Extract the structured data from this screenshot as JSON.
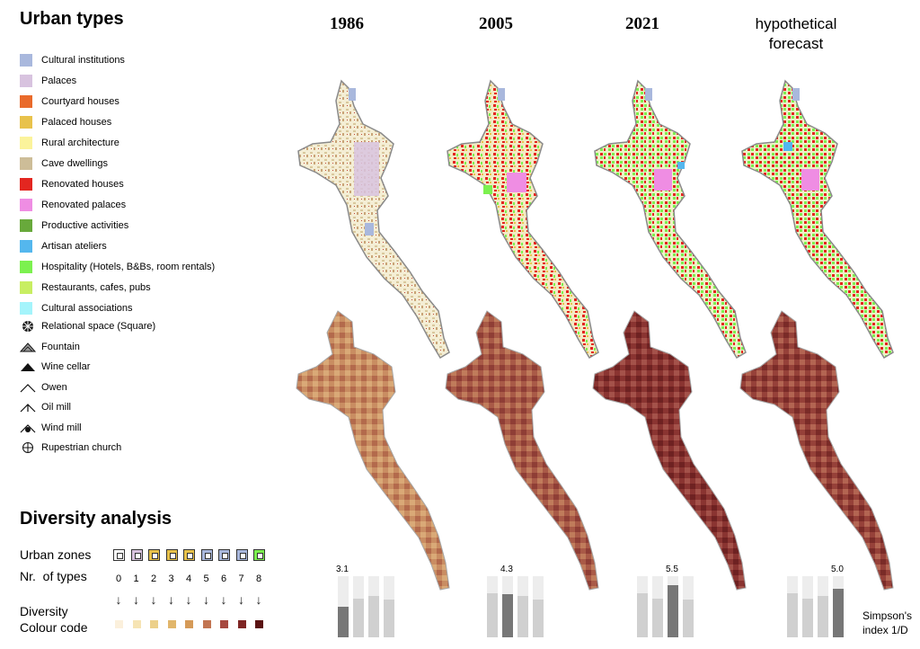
{
  "legend": {
    "title": "Urban types",
    "types": [
      {
        "label": "Cultural institutions",
        "color": "#a9b8dd"
      },
      {
        "label": "Palaces",
        "color": "#d8c3df"
      },
      {
        "label": "Courtyard houses",
        "color": "#e96a2b"
      },
      {
        "label": "Palaced houses",
        "color": "#e8c24b"
      },
      {
        "label": "Rural architecture",
        "color": "#fbf39b"
      },
      {
        "label": "Cave dwellings",
        "color": "#cdbd98"
      },
      {
        "label": "Renovated houses",
        "color": "#e32620"
      },
      {
        "label": "Renovated palaces",
        "color": "#ef8de3"
      },
      {
        "label": "Productive activities",
        "color": "#68a93b"
      },
      {
        "label": "Artisan ateliers",
        "color": "#54b7ee"
      },
      {
        "label": "Hospitality (Hotels, B&Bs, room rentals)",
        "color": "#7cf14f"
      },
      {
        "label": "Restaurants, cafes, pubs",
        "color": "#c8ee62"
      },
      {
        "label": "Cultural associations",
        "color": "#a4f4fb"
      }
    ],
    "symbols": [
      {
        "label": "Relational space (Square)",
        "icon": "relational-space-icon"
      },
      {
        "label": "Fountain",
        "icon": "fountain-icon"
      },
      {
        "label": "Wine cellar",
        "icon": "wine-cellar-icon"
      },
      {
        "label": "Owen",
        "icon": "oven-icon"
      },
      {
        "label": "Oil mill",
        "icon": "oil-mill-icon"
      },
      {
        "label": "Wind mill",
        "icon": "wind-mill-icon"
      },
      {
        "label": "Rupestrian church",
        "icon": "rupestrian-church-icon"
      }
    ]
  },
  "diversity": {
    "title": "Diversity analysis",
    "zones_label": "Urban zones",
    "types_label": "Nr.  of types",
    "numbers": [
      "0",
      "1",
      "2",
      "3",
      "4",
      "5",
      "6",
      "7",
      "8"
    ],
    "colour_code_label_1": "Diversity",
    "colour_code_label_2": "Colour code",
    "colour_code": [
      "#fbf0dc",
      "#f6e4b4",
      "#ecd08a",
      "#e1b66b",
      "#d59a58",
      "#c27552",
      "#a6483f",
      "#7e2524",
      "#5a1212"
    ]
  },
  "columns": [
    {
      "label": "1986",
      "simpson": "3.1",
      "highlight": 0
    },
    {
      "label": "2005",
      "simpson": "4.3",
      "highlight": 1
    },
    {
      "label": "2021",
      "simpson": "5.5",
      "highlight": 2
    },
    {
      "label_line1": "hypothetical",
      "label_line2": "forecast",
      "simpson": "5.0",
      "highlight": 3
    }
  ],
  "simpson_label_1": "Simpson's",
  "simpson_label_2": "index 1/D",
  "colors": {
    "outline": "#888888",
    "map_bg": "#f3eed8"
  }
}
